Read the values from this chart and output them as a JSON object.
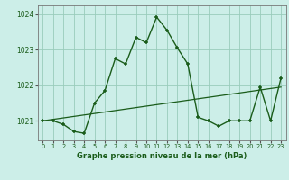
{
  "title": "Graphe pression niveau de la mer (hPa)",
  "bg_color": "#cceee8",
  "grid_color": "#99ccbb",
  "line_color": "#1a5c1a",
  "xlim": [
    -0.5,
    23.5
  ],
  "ylim": [
    1020.45,
    1024.25
  ],
  "yticks": [
    1021,
    1022,
    1023,
    1024
  ],
  "xticks": [
    0,
    1,
    2,
    3,
    4,
    5,
    6,
    7,
    8,
    9,
    10,
    11,
    12,
    13,
    14,
    15,
    16,
    17,
    18,
    19,
    20,
    21,
    22,
    23
  ],
  "hours": [
    0,
    1,
    2,
    3,
    4,
    5,
    6,
    7,
    8,
    9,
    10,
    11,
    12,
    13,
    14,
    15,
    16,
    17,
    18,
    19,
    20,
    21,
    22,
    23
  ],
  "pressure": [
    1021.0,
    1021.0,
    1020.9,
    1020.7,
    1020.65,
    1021.5,
    1021.85,
    1022.75,
    1022.6,
    1023.35,
    1023.2,
    1023.92,
    1023.55,
    1023.05,
    1022.6,
    1021.1,
    1021.0,
    1020.85,
    1021.0,
    1021.0,
    1021.0,
    1021.95,
    1021.0,
    1022.2
  ],
  "trend_x": [
    0,
    23
  ],
  "trend_y": [
    1021.0,
    1021.95
  ]
}
